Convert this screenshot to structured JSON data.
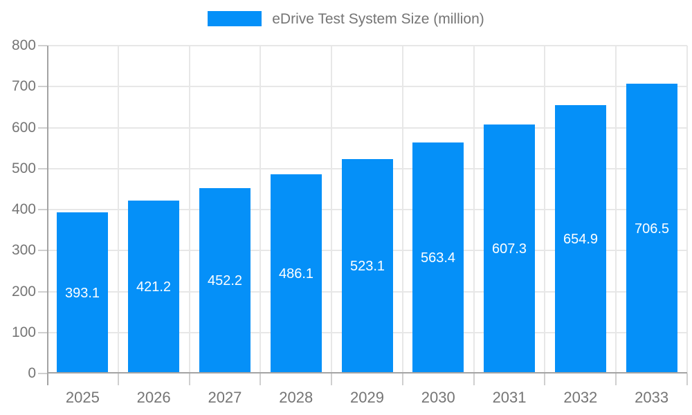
{
  "legend": {
    "label": "eDrive Test System Size (million)"
  },
  "colors": {
    "bar": "#0590f8",
    "grid": "#e7e7e7",
    "axis": "#a3a3a3",
    "tick": "#cfcfcf",
    "axis_text": "#757575",
    "legend_text": "#757575",
    "value_text": "#ffffff",
    "background": "#ffffff"
  },
  "chart_data": {
    "type": "bar",
    "title": "eDrive Test System Size (million)",
    "categories": [
      "2025",
      "2026",
      "2027",
      "2028",
      "2029",
      "2030",
      "2031",
      "2032",
      "2033"
    ],
    "series": [
      {
        "name": "eDrive Test System Size (million)",
        "values": [
          393.1,
          421.2,
          452.2,
          486.1,
          523.1,
          563.4,
          607.3,
          654.9,
          706.5
        ]
      }
    ],
    "value_label_decimals": 1,
    "value_labels_position": "inside-center",
    "xlabel": "",
    "ylabel": "",
    "ylim": [
      0,
      800
    ],
    "yticks": [
      0,
      100,
      200,
      300,
      400,
      500,
      600,
      700,
      800
    ],
    "grid": true,
    "legend_position": "top-center",
    "bar_width_fraction": 0.72
  }
}
